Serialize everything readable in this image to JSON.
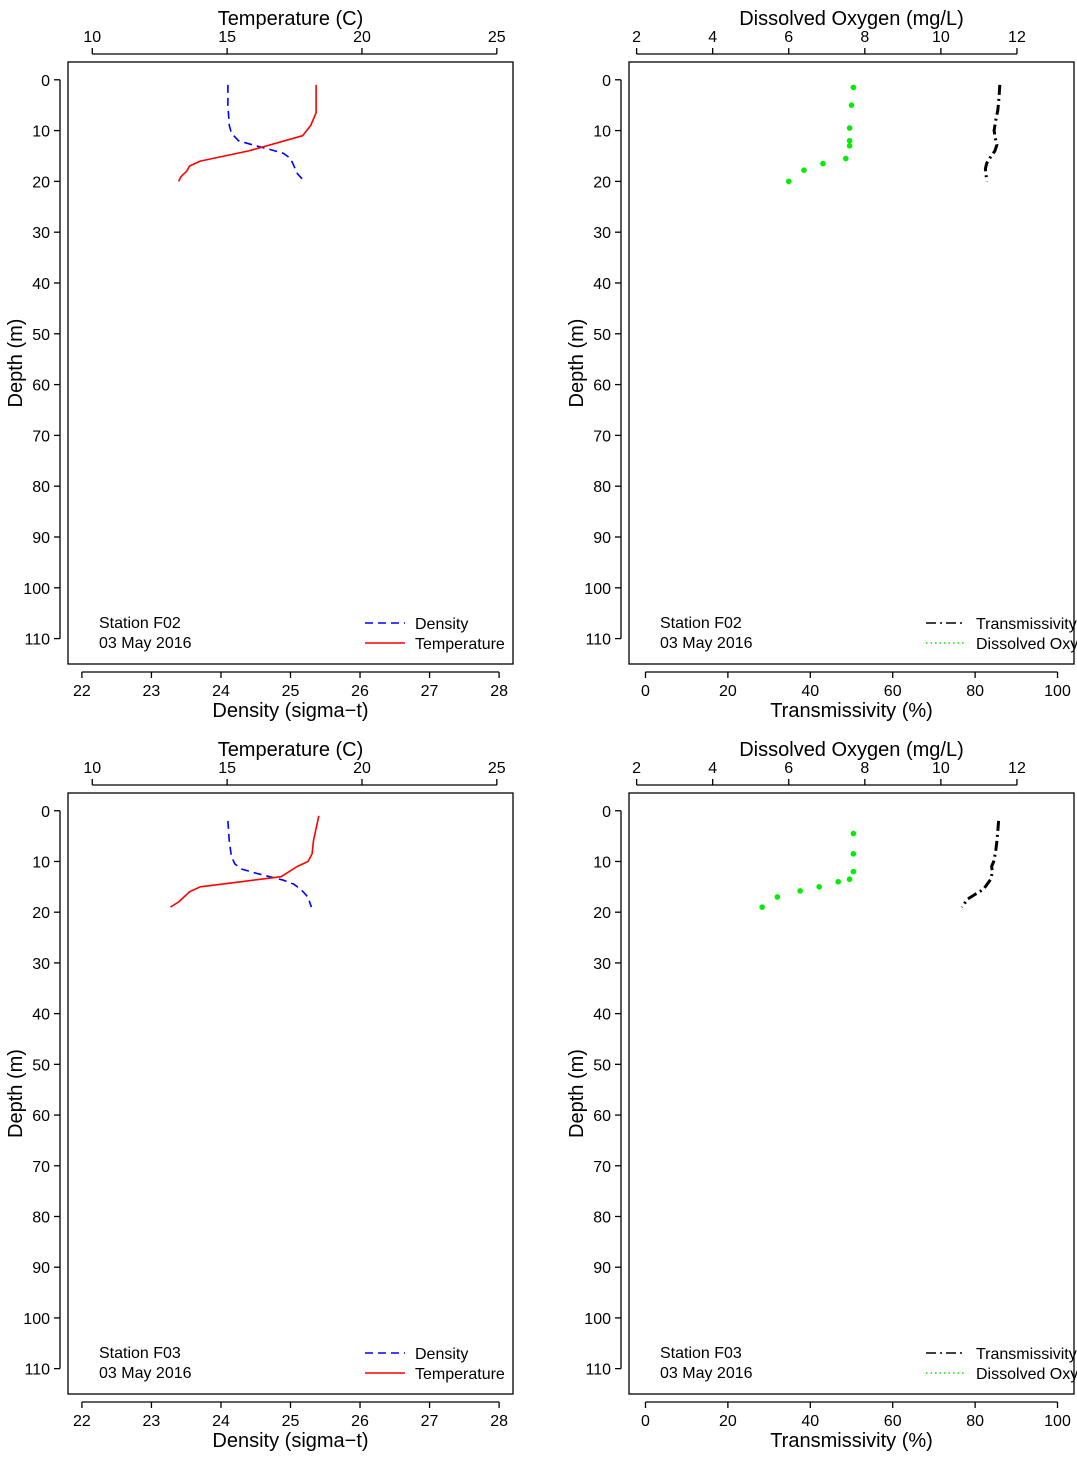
{
  "chart_data": [
    {
      "type": "line",
      "kind": "temp_density",
      "station": "Station F02",
      "date": "03 May 2016",
      "y_axis": {
        "label": "Depth (m)",
        "range": [
          115,
          -3.5
        ],
        "ticks": [
          "0",
          "10",
          "20",
          "30",
          "40",
          "50",
          "60",
          "70",
          "80",
          "90",
          "100",
          "110"
        ],
        "tick_values": [
          0,
          10,
          20,
          30,
          40,
          50,
          60,
          70,
          80,
          90,
          100,
          110
        ]
      },
      "bottom_axis": {
        "label": "Density (sigma−t)",
        "range": [
          21.8,
          28.2
        ],
        "ticks": [
          "22",
          "23",
          "24",
          "25",
          "26",
          "27",
          "28"
        ],
        "tick_values": [
          22,
          23,
          24,
          25,
          26,
          27,
          28
        ]
      },
      "top_axis": {
        "label": "Temperature (C)",
        "range": [
          9.1,
          25.6
        ],
        "ticks": [
          "10",
          "15",
          "20",
          "25"
        ],
        "tick_values": [
          10,
          15,
          20,
          25
        ]
      },
      "legend": {
        "placement": "bottom-right",
        "entries": [
          "Density",
          "Temperature"
        ]
      },
      "series": [
        {
          "name": "Density",
          "axis": "bottom",
          "color": "#0000ff",
          "dash": "dashed",
          "x": [
            24.1,
            24.1,
            24.12,
            24.15,
            24.25,
            24.5,
            24.7,
            24.9,
            25.0,
            25.05,
            25.1,
            25.2
          ],
          "y": [
            1,
            5,
            9,
            10.5,
            12,
            13,
            13.7,
            14.5,
            15.5,
            17,
            18.5,
            20
          ]
        },
        {
          "name": "Temperature",
          "axis": "top",
          "color": "#ff0000",
          "dash": "solid",
          "x": [
            18.3,
            18.3,
            18.3,
            18.1,
            17.8,
            15.8,
            14.0,
            13.6,
            13.5,
            13.3,
            13.2
          ],
          "y": [
            1,
            3,
            6.5,
            9,
            11,
            14,
            16,
            17,
            18,
            19,
            20
          ]
        }
      ]
    },
    {
      "type": "line",
      "kind": "trans_do",
      "station": "Station F02",
      "date": "03 May 2016",
      "y_axis": {
        "label": "Depth (m)",
        "range": [
          115,
          -3.5
        ],
        "ticks": [
          "0",
          "10",
          "20",
          "30",
          "40",
          "50",
          "60",
          "70",
          "80",
          "90",
          "100",
          "110"
        ],
        "tick_values": [
          0,
          10,
          20,
          30,
          40,
          50,
          60,
          70,
          80,
          90,
          100,
          110
        ]
      },
      "bottom_axis": {
        "label": "Transmissivity (%)",
        "range": [
          -4,
          104
        ],
        "ticks": [
          "0",
          "20",
          "40",
          "60",
          "80",
          "100"
        ],
        "tick_values": [
          0,
          20,
          40,
          60,
          80,
          100
        ]
      },
      "top_axis": {
        "label": "Dissolved Oxygen (mg/L)",
        "range": [
          1.8,
          13.5
        ],
        "ticks": [
          "2",
          "4",
          "6",
          "8",
          "10",
          "12"
        ],
        "tick_values": [
          2,
          4,
          6,
          8,
          10,
          12
        ]
      },
      "legend": {
        "placement": "bottom-right",
        "entries": [
          "Transmissivity",
          "Dissolved Oxygen"
        ]
      },
      "series": [
        {
          "name": "Transmissivity",
          "axis": "bottom",
          "color": "#000000",
          "dash": "dashdot",
          "x": [
            86.0,
            85.8,
            85.5,
            85.0,
            84.6,
            84.9,
            85.3,
            84.8,
            83.5,
            82.8,
            82.5,
            82.6,
            82.9
          ],
          "y": [
            1,
            3.5,
            6,
            8,
            10,
            11.5,
            12.8,
            14,
            15.5,
            16.5,
            17.5,
            18.5,
            20
          ]
        },
        {
          "name": "Dissolved Oxygen",
          "axis": "top",
          "color": "#00ee00",
          "dash": "dotted",
          "x": [
            7.7,
            7.65,
            7.6,
            7.6,
            7.6,
            7.5,
            6.9,
            6.4,
            6.0
          ],
          "y": [
            1.5,
            5,
            9.5,
            12,
            13,
            15.5,
            16.5,
            17.8,
            20
          ]
        }
      ]
    },
    {
      "type": "line",
      "kind": "temp_density",
      "station": "Station F03",
      "date": "03 May 2016",
      "y_axis": {
        "label": "Depth (m)",
        "range": [
          115,
          -3.5
        ],
        "ticks": [
          "0",
          "10",
          "20",
          "30",
          "40",
          "50",
          "60",
          "70",
          "80",
          "90",
          "100",
          "110"
        ],
        "tick_values": [
          0,
          10,
          20,
          30,
          40,
          50,
          60,
          70,
          80,
          90,
          100,
          110
        ]
      },
      "bottom_axis": {
        "label": "Density (sigma−t)",
        "range": [
          21.8,
          28.2
        ],
        "ticks": [
          "22",
          "23",
          "24",
          "25",
          "26",
          "27",
          "28"
        ],
        "tick_values": [
          22,
          23,
          24,
          25,
          26,
          27,
          28
        ]
      },
      "top_axis": {
        "label": "Temperature (C)",
        "range": [
          9.1,
          25.6
        ],
        "ticks": [
          "10",
          "15",
          "20",
          "25"
        ],
        "tick_values": [
          10,
          15,
          20,
          25
        ]
      },
      "legend": {
        "placement": "bottom-right",
        "entries": [
          "Density",
          "Temperature"
        ]
      },
      "series": [
        {
          "name": "Density",
          "axis": "bottom",
          "color": "#0000ff",
          "dash": "dashed",
          "x": [
            24.1,
            24.12,
            24.15,
            24.2,
            24.3,
            24.5,
            24.7,
            24.9,
            25.05,
            25.15,
            25.25,
            25.3
          ],
          "y": [
            2,
            6,
            9,
            10.5,
            11.5,
            12.3,
            13,
            13.7,
            14.5,
            15.5,
            17,
            19
          ]
        },
        {
          "name": "Temperature",
          "axis": "top",
          "color": "#ff0000",
          "dash": "solid",
          "x": [
            18.4,
            18.3,
            18.2,
            18.15,
            18.0,
            17.6,
            17.0,
            15.5,
            14.0,
            13.6,
            13.4,
            13.2,
            12.9
          ],
          "y": [
            1,
            3.5,
            6,
            8.5,
            10,
            11,
            13,
            14,
            15,
            16,
            17,
            18,
            19
          ]
        }
      ]
    },
    {
      "type": "line",
      "kind": "trans_do",
      "station": "Station F03",
      "date": "03 May 2016",
      "y_axis": {
        "label": "Depth (m)",
        "range": [
          115,
          -3.5
        ],
        "ticks": [
          "0",
          "10",
          "20",
          "30",
          "40",
          "50",
          "60",
          "70",
          "80",
          "90",
          "100",
          "110"
        ],
        "tick_values": [
          0,
          10,
          20,
          30,
          40,
          50,
          60,
          70,
          80,
          90,
          100,
          110
        ]
      },
      "bottom_axis": {
        "label": "Transmissivity (%)",
        "range": [
          -4,
          104
        ],
        "ticks": [
          "0",
          "20",
          "40",
          "60",
          "80",
          "100"
        ],
        "tick_values": [
          0,
          20,
          40,
          60,
          80,
          100
        ]
      },
      "top_axis": {
        "label": "Dissolved Oxygen (mg/L)",
        "range": [
          1.8,
          13.5
        ],
        "ticks": [
          "2",
          "4",
          "6",
          "8",
          "10",
          "12"
        ],
        "tick_values": [
          2,
          4,
          6,
          8,
          10,
          12
        ]
      },
      "legend": {
        "placement": "bottom-right",
        "entries": [
          "Transmissivity",
          "Dissolved Oxygen"
        ]
      },
      "series": [
        {
          "name": "Transmissivity",
          "axis": "bottom",
          "color": "#000000",
          "dash": "dashdot",
          "x": [
            85.7,
            85.5,
            85.3,
            85.0,
            84.5,
            84.0,
            84.2,
            83.8,
            82.0,
            80.0,
            78.0,
            77.3,
            76.8
          ],
          "y": [
            2,
            4,
            6,
            8,
            10,
            11,
            12,
            13.5,
            15.5,
            16.5,
            17.5,
            18.5,
            19
          ]
        },
        {
          "name": "Dissolved Oxygen",
          "axis": "top",
          "color": "#00ee00",
          "dash": "dotted",
          "x": [
            7.7,
            7.7,
            7.7,
            7.6,
            7.3,
            6.8,
            6.3,
            5.7,
            5.3
          ],
          "y": [
            4.5,
            8.5,
            12,
            13.5,
            14,
            15,
            15.8,
            17,
            19
          ]
        }
      ]
    }
  ]
}
